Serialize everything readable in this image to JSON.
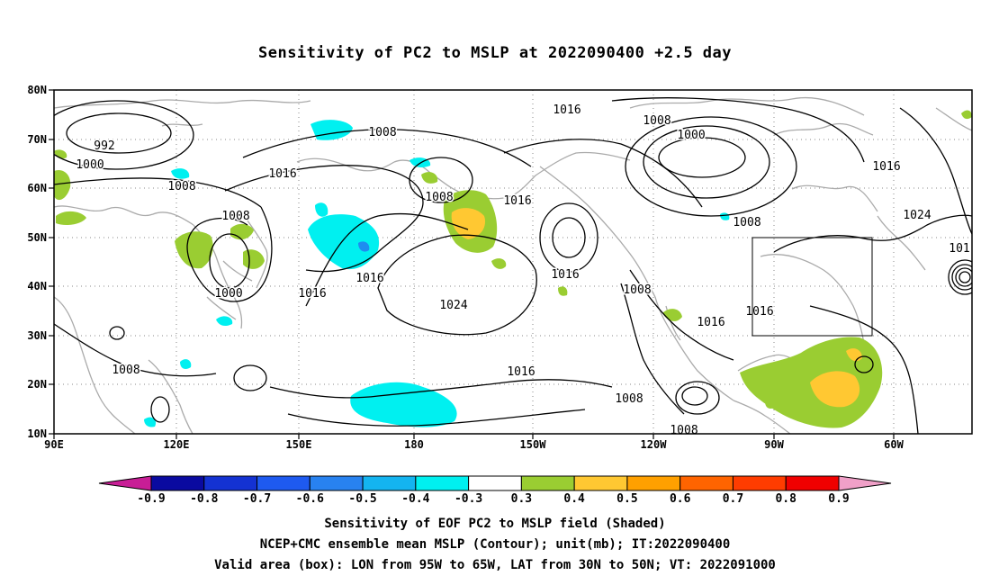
{
  "title": "Sensitivity of PC2 to MSLP at 2022090400 +2.5 day",
  "lat_labels": [
    "80N",
    "70N",
    "60N",
    "50N",
    "40N",
    "30N",
    "20N",
    "10N"
  ],
  "lon_labels": [
    "90E",
    "120E",
    "150E",
    "180",
    "150W",
    "120W",
    "90W",
    "60W"
  ],
  "contour_labels": [
    {
      "text": "992"
    },
    {
      "text": "1000"
    },
    {
      "text": "1008"
    },
    {
      "text": "1008"
    },
    {
      "text": "1016"
    },
    {
      "text": "1008"
    },
    {
      "text": "1000"
    },
    {
      "text": "1016"
    },
    {
      "text": "1016"
    },
    {
      "text": "1008"
    },
    {
      "text": "1016"
    },
    {
      "text": "1024"
    },
    {
      "text": "1016"
    },
    {
      "text": "1008"
    },
    {
      "text": "1000"
    },
    {
      "text": "1008"
    },
    {
      "text": "1016"
    },
    {
      "text": "1016"
    },
    {
      "text": "1024"
    },
    {
      "text": "1016"
    },
    {
      "text": "1008"
    },
    {
      "text": "1016"
    },
    {
      "text": "1008"
    },
    {
      "text": "1008"
    },
    {
      "text": "1008"
    },
    {
      "text": "101"
    }
  ],
  "colorbar": {
    "labels": [
      "-0.9",
      "-0.8",
      "-0.7",
      "-0.6",
      "-0.5",
      "-0.4",
      "-0.3",
      "0.3",
      "0.4",
      "0.5",
      "0.6",
      "0.7",
      "0.8",
      "0.9"
    ],
    "colors": [
      "#0a0aa0",
      "#1432d2",
      "#1e5af0",
      "#2882f0",
      "#14b4f0",
      "#00f0f0",
      "#ffffff",
      "#9acd32",
      "#ffc832",
      "#ffa000",
      "#ff6400",
      "#ff3c00",
      "#f00000"
    ],
    "low_end_color": "#c81e96",
    "high_end_color": "#f0a0c8"
  },
  "captions": {
    "line1": "Sensitivity of EOF PC2 to MSLP field (Shaded)",
    "line2": "NCEP+CMC ensemble mean MSLP (Contour); unit(mb); IT:2022090400",
    "line3": "Valid area (box): LON from 95W to 65W, LAT from 30N to 50N; VT: 2022091000"
  }
}
